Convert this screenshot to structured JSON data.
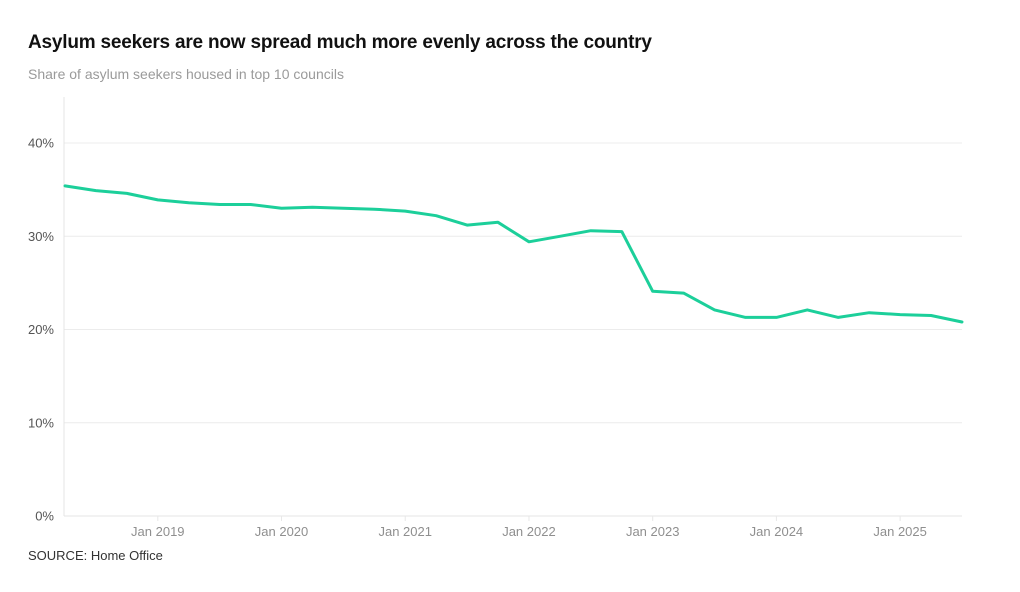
{
  "title": "Asylum seekers are now spread much more evenly across the country",
  "subtitle": "Share of asylum seekers housed in top 10 councils",
  "source": "SOURCE: Home Office",
  "colors": {
    "line": "#1ccf9a",
    "grid": "#ececec",
    "axis": "#e4e4e4"
  },
  "chart_data": {
    "type": "line",
    "title": "Asylum seekers are now spread much more evenly across the country",
    "subtitle": "Share of asylum seekers housed in top 10 councils",
    "xlabel": "",
    "ylabel": "",
    "ylim": [
      0,
      45
    ],
    "yticks": [
      0,
      10,
      20,
      30,
      40
    ],
    "ytick_labels": [
      "0%",
      "10%",
      "20%",
      "30%",
      "40%"
    ],
    "xticks": [
      2019,
      2020,
      2021,
      2022,
      2023,
      2024,
      2025
    ],
    "xtick_labels": [
      "Jan 2019",
      "Jan 2020",
      "Jan 2021",
      "Jan 2022",
      "Jan 2023",
      "Jan 2024",
      "Jan 2025"
    ],
    "xlim": [
      2018.25,
      2025.5
    ],
    "grid": true,
    "legend": "none",
    "series": [
      {
        "name": "Share housed in top 10 councils (%)",
        "x": [
          "Apr 2018",
          "Jul 2018",
          "Oct 2018",
          "Jan 2019",
          "Apr 2019",
          "Jul 2019",
          "Oct 2019",
          "Jan 2020",
          "Apr 2020",
          "Jul 2020",
          "Oct 2020",
          "Jan 2021",
          "Apr 2021",
          "Jul 2021",
          "Oct 2021",
          "Jan 2022",
          "Apr 2022",
          "Jul 2022",
          "Oct 2022",
          "Jan 2023",
          "Apr 2023",
          "Jul 2023",
          "Oct 2023",
          "Jan 2024",
          "Apr 2024",
          "Jul 2024",
          "Oct 2024",
          "Jan 2025",
          "Apr 2025",
          "Jul 2025"
        ],
        "x_numeric": [
          2018.25,
          2018.5,
          2018.75,
          2019,
          2019.25,
          2019.5,
          2019.75,
          2020,
          2020.25,
          2020.5,
          2020.75,
          2021,
          2021.25,
          2021.5,
          2021.75,
          2022,
          2022.25,
          2022.5,
          2022.75,
          2023,
          2023.25,
          2023.5,
          2023.75,
          2024,
          2024.25,
          2024.5,
          2024.75,
          2025,
          2025.25,
          2025.5
        ],
        "values": [
          35.4,
          34.9,
          34.6,
          33.9,
          33.6,
          33.4,
          33.4,
          33.0,
          33.1,
          33.0,
          32.9,
          32.7,
          32.2,
          31.2,
          31.5,
          29.4,
          30.0,
          30.6,
          30.5,
          24.1,
          23.9,
          22.1,
          21.3,
          21.3,
          22.1,
          21.3,
          21.8,
          21.6,
          21.5,
          20.8
        ]
      }
    ]
  }
}
